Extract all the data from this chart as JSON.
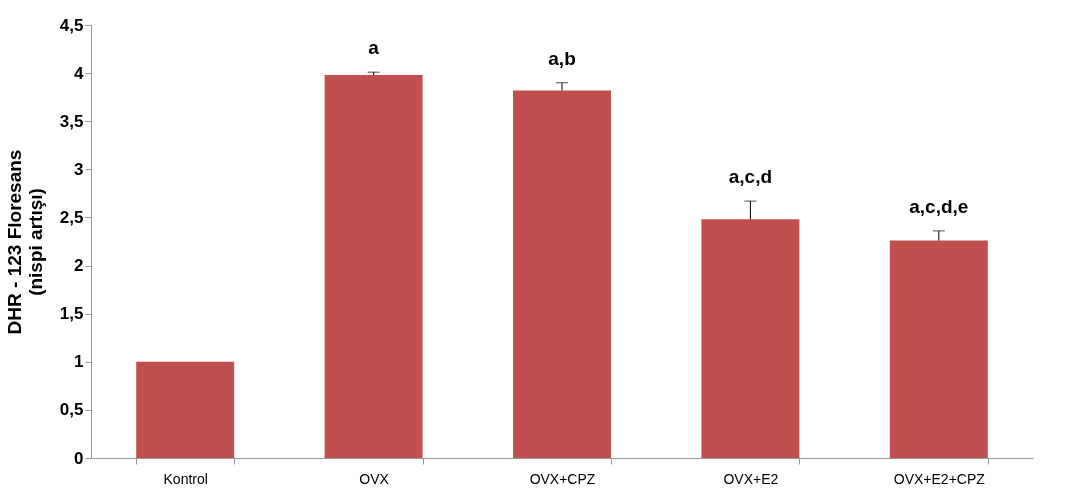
{
  "chart_data": {
    "type": "bar",
    "ylabel": "DHR - 123 Floresans\n(nispi artışı)",
    "categories": [
      "Kontrol",
      "OVX",
      "OVX+CPZ",
      "OVX+E2",
      "OVX+E2+CPZ"
    ],
    "values": [
      1.0,
      3.98,
      3.82,
      2.48,
      2.26
    ],
    "errors": [
      null,
      [
        3.98,
        4.01
      ],
      [
        3.82,
        3.9
      ],
      [
        2.48,
        2.67
      ],
      [
        2.26,
        2.36
      ]
    ],
    "color": "#c0504d",
    "ylim": [
      0,
      4.5
    ],
    "yticks": [
      0,
      {
        "value": 0.5,
        "label": "0,5"
      },
      1,
      {
        "value": 1.5,
        "label": "1,5"
      },
      2,
      {
        "value": 2.5,
        "label": "2,5"
      },
      3,
      {
        "value": 3.5,
        "label": "3,5"
      },
      4,
      {
        "value": 4.5,
        "label": "4,5"
      }
    ],
    "grid": false,
    "annotations": [
      {
        "text": "a",
        "x": "OVX",
        "y": 4.01
      },
      {
        "text": "a,b",
        "x": "OVX+CPZ",
        "y": 3.9
      },
      {
        "text": "a,c,d",
        "x": "OVX+E2",
        "y": 2.67
      },
      {
        "text": "a,c,d,e",
        "x": "OVX+E2+CPZ",
        "y": 2.36
      }
    ]
  }
}
